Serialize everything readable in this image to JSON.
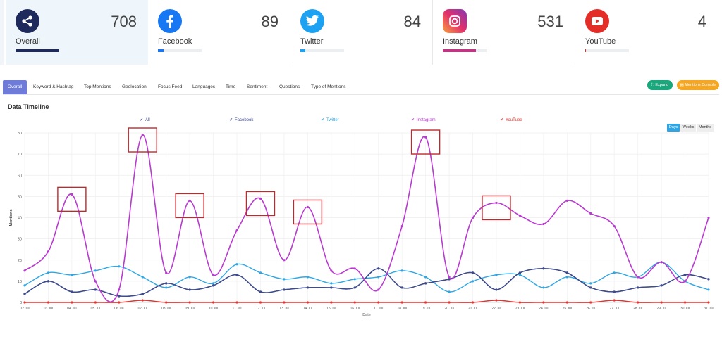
{
  "cards": [
    {
      "label": "Overall",
      "count": "708",
      "icon": "share-icon",
      "color": "#1f2a5c",
      "progress": 1.0
    },
    {
      "label": "Facebook",
      "count": "89",
      "icon": "facebook-icon",
      "color": "#1877f2",
      "progress": 0.13
    },
    {
      "label": "Twitter",
      "count": "84",
      "icon": "twitter-icon",
      "color": "#1da1f2",
      "progress": 0.12
    },
    {
      "label": "Instagram",
      "count": "531",
      "icon": "instagram-icon",
      "color": "#c13584",
      "progress": 0.75
    },
    {
      "label": "YouTube",
      "count": "4",
      "icon": "youtube-icon",
      "color": "#e52d27",
      "progress": 0.01
    }
  ],
  "tabs": [
    "Overall",
    "Keyword & Hashtag",
    "Top Mentions",
    "Geolocation",
    "Focus Feed",
    "Languages",
    "Time",
    "Sentiment",
    "Questions",
    "Type of Mentions"
  ],
  "buttons": {
    "expand": "Expand",
    "mentions_console": "Mentions Console"
  },
  "section_title": "Data Timeline",
  "range_toggle": [
    "Days",
    "Weeks",
    "Months"
  ],
  "colors": {
    "accent": "#6f7bd8",
    "expand": "#1aa77c",
    "console": "#f5a623"
  },
  "chart_data": {
    "type": "line",
    "title": "Data Timeline",
    "xlabel": "Date",
    "ylabel": "Mentions",
    "ylim": [
      0,
      80
    ],
    "yticks": [
      0,
      10,
      20,
      30,
      40,
      50,
      60,
      70,
      80
    ],
    "legend_position": "top",
    "categories": [
      "02 Jul",
      "03 Jul",
      "04 Jul",
      "05 Jul",
      "06 Jul",
      "07 Jul",
      "08 Jul",
      "09 Jul",
      "10 Jul",
      "11 Jul",
      "12 Jul",
      "13 Jul",
      "14 Jul",
      "15 Jul",
      "16 Jul",
      "17 Jul",
      "18 Jul",
      "19 Jul",
      "20 Jul",
      "21 Jul",
      "22 Jul",
      "23 Jul",
      "24 Jul",
      "25 Jul",
      "26 Jul",
      "27 Jul",
      "28 Jul",
      "29 Jul",
      "30 Jul",
      "31 Jul"
    ],
    "series": [
      {
        "name": "All",
        "color": "#3d4a8c",
        "values": [
          4,
          10,
          5,
          6,
          3,
          4,
          9,
          6,
          8,
          13,
          5,
          6,
          7,
          7,
          7,
          16,
          7,
          9,
          11,
          14,
          6,
          14,
          16,
          14,
          7,
          5,
          7,
          8,
          13,
          11
        ]
      },
      {
        "name": "Facebook",
        "color": "#3d4a8c",
        "values": [
          4,
          10,
          5,
          6,
          3,
          4,
          9,
          6,
          8,
          13,
          5,
          6,
          7,
          7,
          7,
          16,
          7,
          9,
          11,
          14,
          6,
          14,
          16,
          14,
          7,
          5,
          7,
          8,
          13,
          11
        ]
      },
      {
        "name": "Twitter",
        "color": "#2fa6e3",
        "values": [
          8,
          14,
          13,
          15,
          17,
          12,
          7,
          12,
          9,
          18,
          14,
          11,
          12,
          9,
          11,
          12,
          15,
          12,
          5,
          10,
          13,
          13,
          7,
          12,
          9,
          14,
          12,
          19,
          10,
          6
        ]
      },
      {
        "name": "Instagram",
        "color": "#b93ad0",
        "values": [
          15,
          24,
          51,
          10,
          6,
          79,
          14,
          48,
          13,
          34,
          49,
          20,
          45,
          15,
          16,
          6,
          36,
          78,
          12,
          40,
          47,
          41,
          37,
          48,
          42,
          36,
          12,
          19,
          10,
          40
        ]
      },
      {
        "name": "YouTube",
        "color": "#e3342f",
        "values": [
          0,
          0,
          0,
          0,
          0,
          1,
          0,
          0,
          0,
          0,
          0,
          0,
          0,
          0,
          0,
          0,
          0,
          0,
          0,
          0,
          1,
          0,
          0,
          0,
          0,
          1,
          0,
          0,
          0,
          0
        ]
      }
    ],
    "highlighted_points": [
      "04 Jul",
      "07 Jul",
      "09 Jul",
      "12 Jul",
      "14 Jul",
      "19 Jul",
      "22 Jul"
    ]
  }
}
